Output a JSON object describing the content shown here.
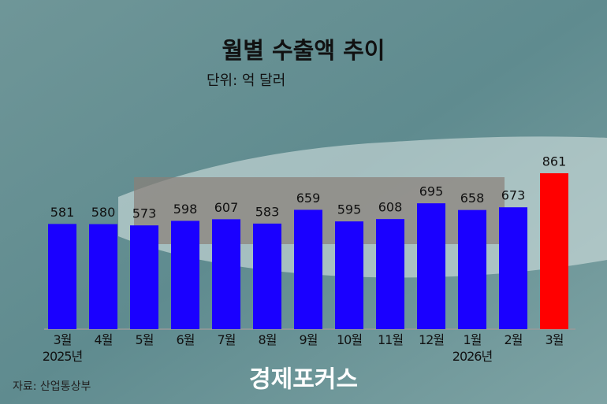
{
  "chart_data": {
    "type": "bar",
    "title": "월별 수출액 추이",
    "subtitle": "단위: 억 달러",
    "categories": [
      "3월\n2025년",
      "4월",
      "5월",
      "6월",
      "7월",
      "8월",
      "9월",
      "10월",
      "11월",
      "12월",
      "1월\n2026년",
      "2월",
      "3월"
    ],
    "values": [
      581,
      580,
      573,
      598,
      607,
      583,
      659,
      595,
      608,
      695,
      658,
      673,
      861
    ],
    "colors": [
      "#1a00ff",
      "#1a00ff",
      "#1a00ff",
      "#1a00ff",
      "#1a00ff",
      "#1a00ff",
      "#1a00ff",
      "#1a00ff",
      "#1a00ff",
      "#1a00ff",
      "#1a00ff",
      "#1a00ff",
      "#ff0000"
    ],
    "ylim": [
      0,
      1000
    ],
    "source": "자료: 산업통상부",
    "logo": "경제포커스"
  }
}
